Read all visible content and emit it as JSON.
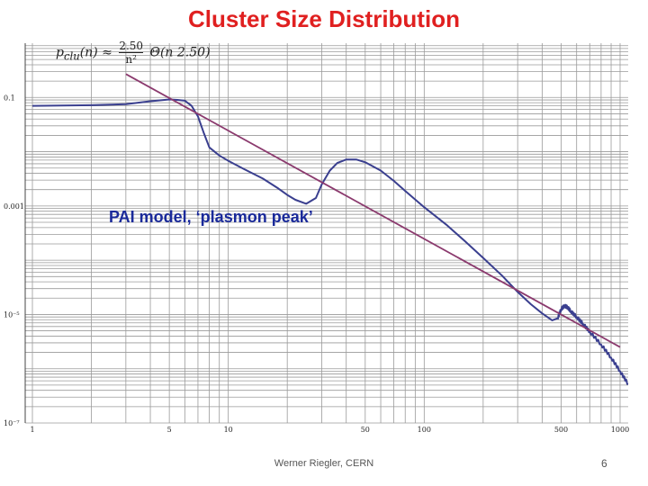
{
  "title": "Cluster Size Distribution",
  "formula": {
    "lhs": "p",
    "lhs_sub": "clu",
    "arg": "(n) ≈",
    "num": "2.50",
    "den": "n²",
    "rhs": "Θ(n   2.50)"
  },
  "annotation": "PAI model, ‘plasmon peak’",
  "footer": "Werner Riegler, CERN",
  "page_number": "6",
  "colors": {
    "title": "#e02020",
    "model_curve": "#3a3f8f",
    "power_law": "#8b3a6e",
    "grid": "#9a9a9a",
    "annotation": "#1a2a9a"
  },
  "chart_data": {
    "type": "line",
    "x_scale": "log",
    "y_scale": "log",
    "xlim": [
      1,
      1100
    ],
    "ylim": [
      1e-07,
      1
    ],
    "x_ticks": [
      {
        "value": 1,
        "label": "1"
      },
      {
        "value": 5,
        "label": "5"
      },
      {
        "value": 10,
        "label": "10"
      },
      {
        "value": 50,
        "label": "50"
      },
      {
        "value": 100,
        "label": "100"
      },
      {
        "value": 500,
        "label": "500"
      },
      {
        "value": 1000,
        "label": "1000"
      }
    ],
    "y_ticks": [
      {
        "value": 0.1,
        "label": "0.1"
      },
      {
        "value": 0.001,
        "label": "0.001"
      },
      {
        "value": 1e-05,
        "label": "10⁻⁵"
      },
      {
        "value": 1e-07,
        "label": "10⁻⁷"
      }
    ],
    "grid": true,
    "series": [
      {
        "style": "model",
        "x": [
          1,
          2,
          3,
          4,
          5,
          5.5,
          6,
          6.5,
          7,
          7.5,
          8,
          9,
          10,
          12,
          15,
          18,
          20,
          22,
          25,
          28,
          30,
          33,
          36,
          40,
          45,
          50,
          60,
          70,
          80,
          100,
          130,
          160,
          200,
          250,
          300,
          350,
          400,
          450,
          480,
          500,
          520,
          540,
          560,
          600,
          650,
          700,
          800,
          900,
          1000,
          1100
        ],
        "y": [
          0.07,
          0.072,
          0.075,
          0.085,
          0.092,
          0.09,
          0.087,
          0.07,
          0.045,
          0.022,
          0.012,
          0.0085,
          0.0068,
          0.0048,
          0.0032,
          0.0021,
          0.0016,
          0.0013,
          0.0011,
          0.0014,
          0.0025,
          0.0045,
          0.0062,
          0.0072,
          0.0072,
          0.0064,
          0.0045,
          0.0029,
          0.0019,
          0.00095,
          0.00045,
          0.00023,
          0.00011,
          5.2e-05,
          2.6e-05,
          1.55e-05,
          1.05e-05,
          7.8e-06,
          8.5e-06,
          1.25e-05,
          1.45e-05,
          1.35e-05,
          1.15e-05,
          9e-06,
          6.6e-06,
          4.8e-06,
          2.8e-06,
          1.6e-06,
          9e-07,
          5.2e-07
        ]
      },
      {
        "style": "power_law",
        "x": [
          3,
          1000
        ],
        "y": [
          0.27,
          2.5e-06
        ]
      }
    ]
  }
}
